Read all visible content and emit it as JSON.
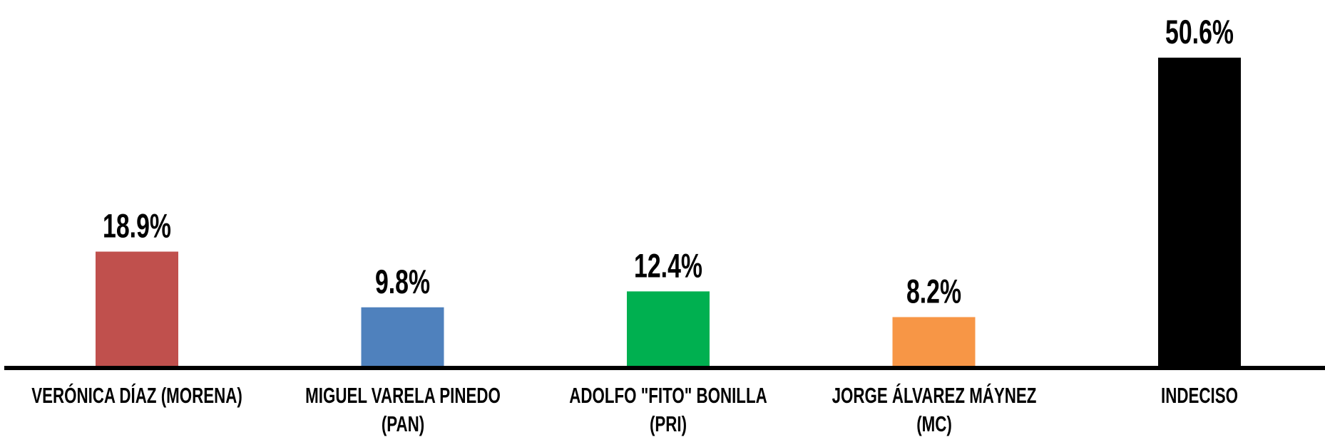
{
  "chart_data": {
    "type": "bar",
    "categories": [
      "VERÓNICA DÍAZ (MORENA)",
      "MIGUEL VARELA PINEDO (PAN)",
      "ADOLFO \"FITO\" BONILLA (PRI)",
      "JORGE ÁLVAREZ MÁYNEZ (MC)",
      "INDECISO"
    ],
    "values": [
      18.9,
      9.8,
      12.4,
      8.2,
      50.6
    ],
    "value_labels": [
      "18.9%",
      "9.8%",
      "12.4%",
      "8.2%",
      "50.6%"
    ],
    "colors": [
      "#c0504d",
      "#4f81bd",
      "#00b050",
      "#f79646",
      "#000000"
    ]
  }
}
